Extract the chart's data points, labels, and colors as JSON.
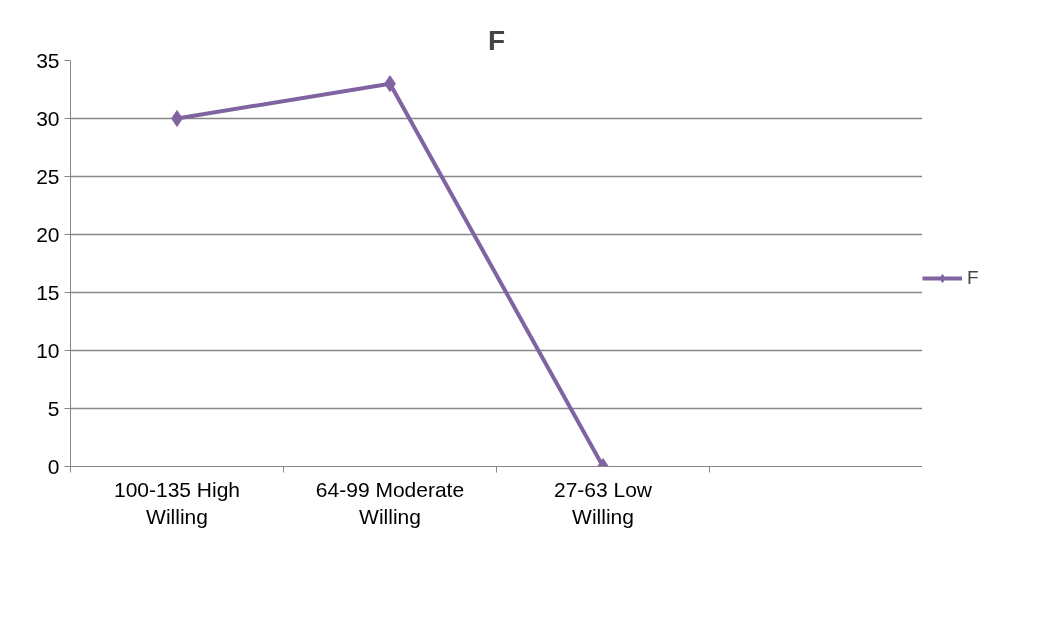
{
  "chart_data": {
    "type": "line",
    "title": "F",
    "categories": [
      "100-135 High Willing",
      "64-99 Moderate Willing",
      "27-63 Low Willing",
      null
    ],
    "series": [
      {
        "name": "F",
        "color": "#8064a2",
        "values": [
          30,
          33,
          0,
          null
        ]
      }
    ],
    "ylim": [
      0,
      35
    ],
    "yticks": [
      0,
      5,
      10,
      15,
      20,
      25,
      30,
      35
    ],
    "grid": "y",
    "legend": "right",
    "marker": "diamond",
    "line_style": "solid"
  }
}
